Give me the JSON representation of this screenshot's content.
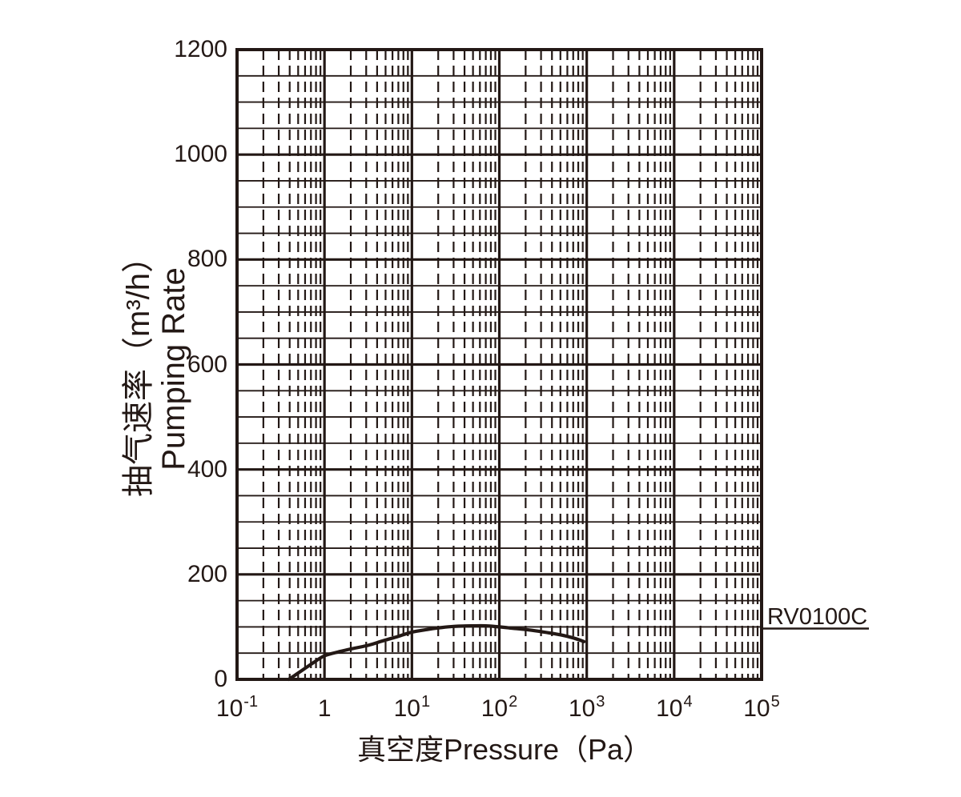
{
  "chart_data": {
    "type": "line",
    "x_scale": "log",
    "xlim": [
      0.1,
      100000
    ],
    "ylim": [
      0,
      1200
    ],
    "x_ticks": [
      "10^-1",
      "1",
      "10^1",
      "10^2",
      "10^3",
      "10^4",
      "10^5"
    ],
    "y_ticks": [
      0,
      200,
      400,
      600,
      800,
      1000,
      1200
    ],
    "y_major_step": 200,
    "y_minor_step": 50,
    "x_minor_divisions": [
      2,
      3,
      4,
      5,
      6,
      7,
      8,
      9
    ],
    "xlabel": "真空度Pressure（Pa）",
    "ylabel": "抽气速率（m³/h） Pumping Rate",
    "grid": "solid horizontal minors every 50, dashed vertical log minors, heavy decade and 200-step lines",
    "legend_position": "right-middle",
    "series": [
      {
        "name": "RV0100C",
        "points": [
          [
            0.39,
            0
          ],
          [
            0.48,
            10
          ],
          [
            0.6,
            21
          ],
          [
            0.75,
            32
          ],
          [
            1,
            45
          ],
          [
            1.5,
            53
          ],
          [
            2,
            58
          ],
          [
            3,
            64
          ],
          [
            4,
            70
          ],
          [
            5,
            75
          ],
          [
            7,
            82
          ],
          [
            10,
            90
          ],
          [
            15,
            95
          ],
          [
            20,
            98
          ],
          [
            30,
            101
          ],
          [
            50,
            102
          ],
          [
            70,
            102
          ],
          [
            100,
            100
          ],
          [
            150,
            97
          ],
          [
            200,
            95
          ],
          [
            300,
            91
          ],
          [
            500,
            85
          ],
          [
            700,
            79
          ],
          [
            930,
            72
          ]
        ]
      }
    ]
  },
  "labels": {
    "x_axis_title": "真空度Pressure（Pa）",
    "y_axis_title_line1": "抽气速率（m³/h）",
    "y_axis_title_line2": "Pumping Rate",
    "series_label": "RV0100C"
  },
  "colors": {
    "ink": "#231815",
    "background": "#ffffff"
  }
}
